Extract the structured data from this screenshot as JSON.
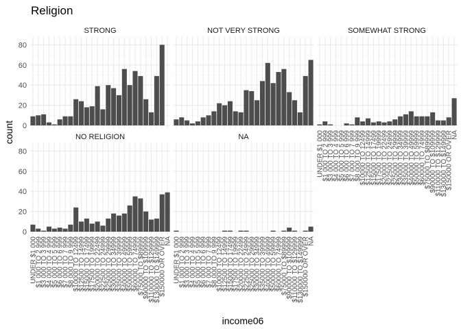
{
  "chart_data": {
    "type": "bar",
    "title": "Religion",
    "xlabel": "income06",
    "ylabel": "count",
    "ylim": [
      0,
      85
    ],
    "yticks": [
      0,
      20,
      40,
      60,
      80
    ],
    "grid": true,
    "legend": "none",
    "bar_color": "#4d4d4d",
    "categories": [
      "UNDER $1 000",
      "$1 000 TO 2 999",
      "$3 000 TO 3 999",
      "$4 000 TO 4 999",
      "$5 000 TO 5 999",
      "$6 000 TO 6 999",
      "$7 000 TO 7 999",
      "$8 000 TO 9 999",
      "$10000 TO 12499",
      "$12500 TO 14999",
      "$15000 TO 17499",
      "$17500 TO 19999",
      "$20000 TO 22499",
      "$22500 TO 24999",
      "$25000 TO 29999",
      "$30000 TO 34999",
      "$35000 TO 39999",
      "$40000 TO 49999",
      "$50000 TO 59999",
      "$60000 TO 74999",
      "$75000 TO $89999",
      "$90000 TO $109999",
      "$110000 TO $129999",
      "$130000 TO $149999",
      "$150000 OR OVER",
      "NA"
    ],
    "series": [
      {
        "name": "STRONG",
        "values": [
          9,
          10,
          11,
          3,
          1,
          6,
          9,
          9,
          26,
          24,
          18,
          19,
          39,
          16,
          40,
          37,
          30,
          56,
          40,
          54,
          49,
          26,
          13,
          49,
          80,
          0
        ]
      },
      {
        "name": "NOT VERY STRONG",
        "values": [
          6,
          8,
          5,
          2,
          4,
          8,
          10,
          14,
          22,
          20,
          24,
          14,
          13,
          35,
          34,
          25,
          44,
          62,
          42,
          53,
          56,
          33,
          25,
          13,
          49,
          65
        ]
      },
      {
        "name": "SOMEWHAT STRONG",
        "values": [
          1,
          4,
          1,
          0,
          0,
          2,
          1,
          8,
          4,
          7,
          3,
          4,
          3,
          4,
          6,
          9,
          11,
          14,
          9,
          9,
          9,
          13,
          5,
          5,
          8,
          27
        ]
      },
      {
        "name": "NO RELIGION",
        "values": [
          7,
          3,
          1,
          5,
          3,
          4,
          3,
          7,
          24,
          10,
          13,
          8,
          10,
          6,
          13,
          18,
          16,
          18,
          26,
          35,
          33,
          20,
          12,
          13,
          37,
          39
        ]
      },
      {
        "name": "NA",
        "values": [
          1,
          0,
          0,
          0,
          0,
          0,
          0,
          0,
          0,
          1,
          1,
          0,
          1,
          1,
          0,
          0,
          0,
          0,
          1,
          0,
          1,
          4,
          1,
          0,
          1,
          5
        ]
      }
    ]
  }
}
